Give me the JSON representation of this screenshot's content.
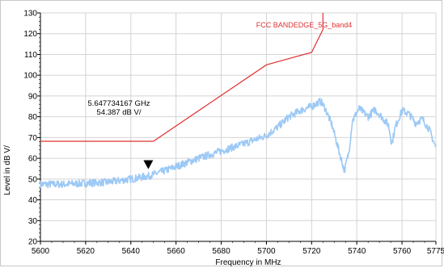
{
  "chart_data": {
    "type": "line",
    "xlabel": "Frequency in MHz",
    "ylabel": "Level in dB   V/",
    "xlim": [
      5600,
      5775
    ],
    "ylim": [
      20,
      130
    ],
    "x_ticks": [
      5600,
      5620,
      5640,
      5660,
      5680,
      5700,
      5720,
      5740,
      5760,
      5775
    ],
    "y_ticks": [
      20,
      30,
      40,
      50,
      60,
      70,
      80,
      90,
      100,
      110,
      120,
      130
    ],
    "grid": true,
    "limit_line": {
      "name": "FCC BANDEDGE_5G_band4",
      "color": "#e03030",
      "points": [
        [
          5600,
          68.2
        ],
        [
          5650,
          68.2
        ],
        [
          5700,
          105
        ],
        [
          5720,
          111
        ],
        [
          5725,
          122
        ],
        [
          5725,
          130
        ]
      ]
    },
    "series": [
      {
        "color": "#9cc9f5",
        "points": [
          [
            5600,
            47.5
          ],
          [
            5610,
            47.5
          ],
          [
            5620,
            48
          ],
          [
            5630,
            48.5
          ],
          [
            5640,
            50
          ],
          [
            5648,
            51.5
          ],
          [
            5655,
            54
          ],
          [
            5660,
            56
          ],
          [
            5670,
            60
          ],
          [
            5680,
            63.5
          ],
          [
            5690,
            67
          ],
          [
            5700,
            71
          ],
          [
            5705,
            75
          ],
          [
            5710,
            80
          ],
          [
            5715,
            83
          ],
          [
            5720,
            85
          ],
          [
            5724,
            87.5
          ],
          [
            5726,
            84
          ],
          [
            5729,
            76
          ],
          [
            5732,
            64
          ],
          [
            5734.5,
            54
          ],
          [
            5736.5,
            63
          ],
          [
            5738,
            78
          ],
          [
            5741,
            84
          ],
          [
            5745,
            80
          ],
          [
            5748,
            83.5
          ],
          [
            5751,
            80
          ],
          [
            5754,
            76
          ],
          [
            5755.5,
            67
          ],
          [
            5757,
            75
          ],
          [
            5760,
            83
          ],
          [
            5763,
            81.5
          ],
          [
            5766,
            77
          ],
          [
            5769,
            79
          ],
          [
            5772,
            74
          ],
          [
            5775,
            65
          ]
        ]
      }
    ],
    "marker": {
      "x": 5647.734167,
      "y": 54.387,
      "label_freq": "5.647734167 GHz",
      "label_level": "54.387 dB    V/"
    }
  }
}
